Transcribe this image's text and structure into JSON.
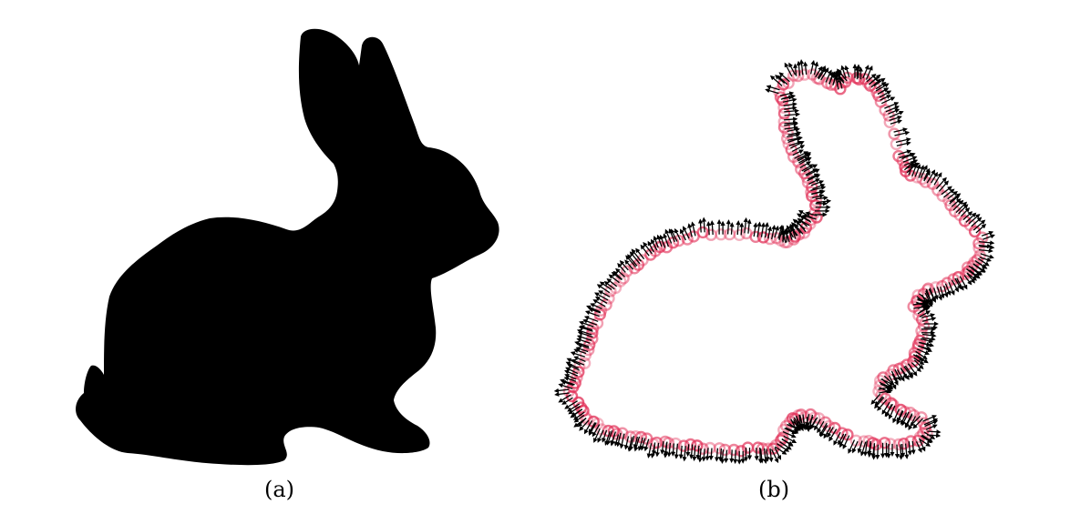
{
  "figure": {
    "panel_a": {
      "caption": "(a)",
      "fill_color": "#000000"
    },
    "panel_b": {
      "caption": "(b)",
      "point_color": "#e2335a",
      "arrow_color": "#000000"
    }
  }
}
